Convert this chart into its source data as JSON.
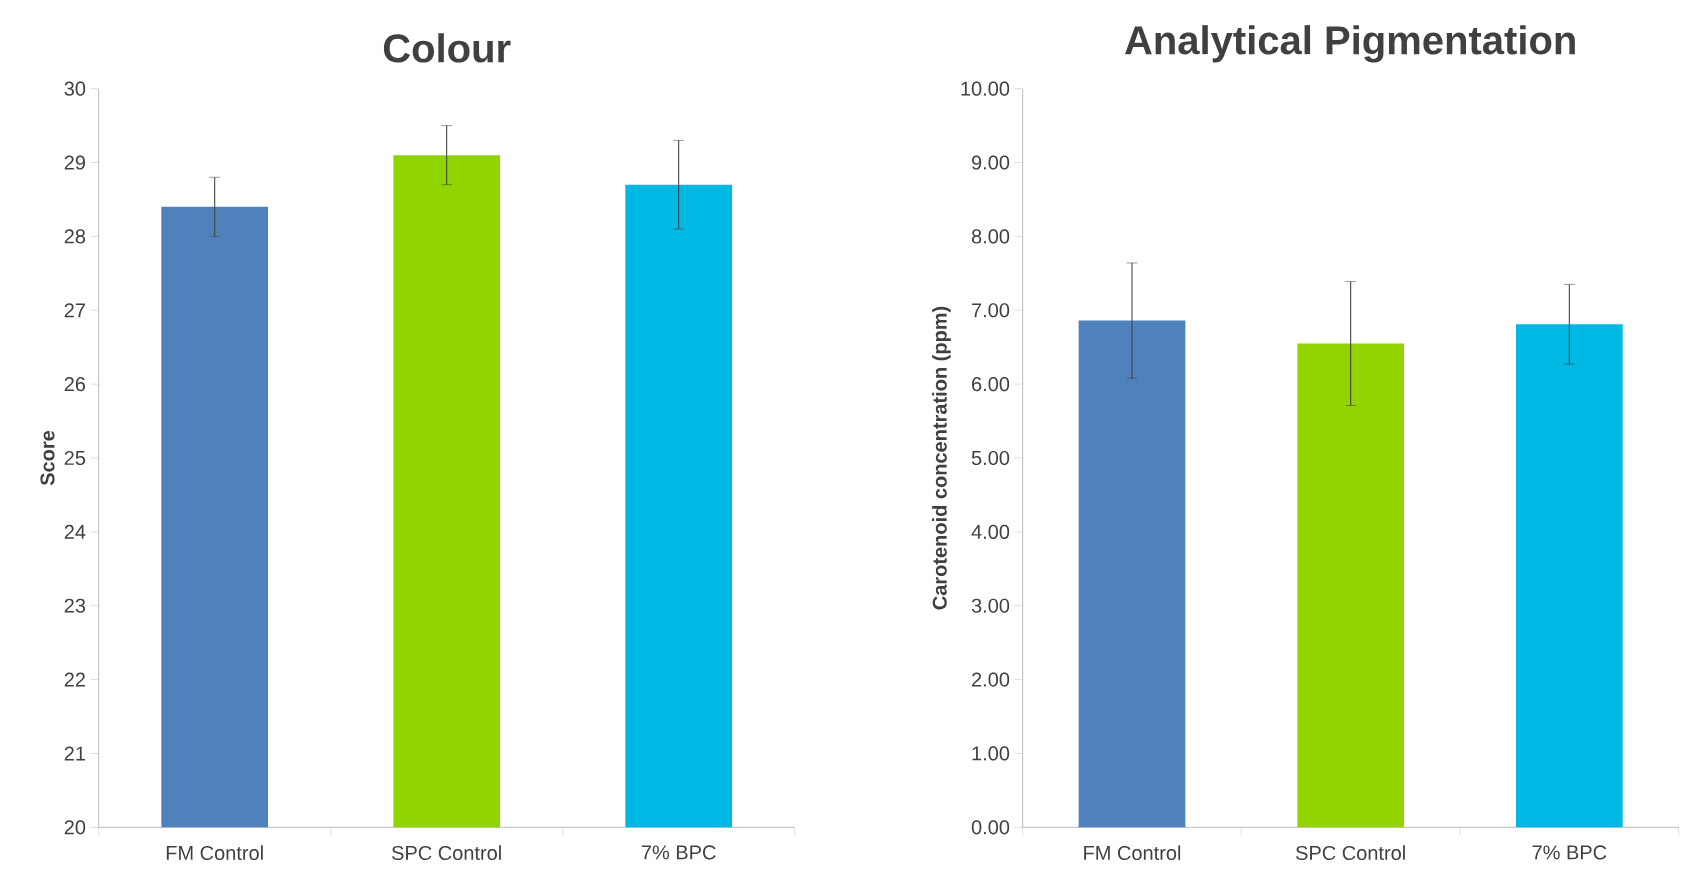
{
  "chart_data": [
    {
      "type": "bar",
      "title": "Colour",
      "ylabel": "Score",
      "categories": [
        "FM Control",
        "SPC Control",
        "7% BPC"
      ],
      "values": [
        28.4,
        29.1,
        28.7
      ],
      "errors": [
        0.4,
        0.4,
        0.6
      ],
      "colors": [
        "#4f81bd",
        "#92d400",
        "#00b8e4"
      ],
      "ylim": [
        20,
        30
      ],
      "yticks": [
        20,
        21,
        22,
        23,
        24,
        25,
        26,
        27,
        28,
        29,
        30
      ],
      "grid": false
    },
    {
      "type": "bar",
      "title": "Analytical Pigmentation",
      "ylabel": "Carotenoid concentration (ppm)",
      "categories": [
        "FM Control",
        "SPC Control",
        "7% BPC"
      ],
      "values": [
        6.86,
        6.55,
        6.81
      ],
      "errors": [
        0.78,
        0.84,
        0.54
      ],
      "colors": [
        "#4f81bd",
        "#92d400",
        "#00b8e4"
      ],
      "ylim": [
        0,
        10
      ],
      "yticks": [
        {
          "value": 0,
          "label": "0.00"
        },
        {
          "value": 1,
          "label": "1.00"
        },
        {
          "value": 2,
          "label": "2.00"
        },
        {
          "value": 3,
          "label": "3.00"
        },
        {
          "value": 4,
          "label": "4.00"
        },
        {
          "value": 5,
          "label": "5.00"
        },
        {
          "value": 6,
          "label": "6.00"
        },
        {
          "value": 7,
          "label": "7.00"
        },
        {
          "value": 8,
          "label": "8.00"
        },
        {
          "value": 9,
          "label": "9.00"
        },
        {
          "value": 10,
          "label": "10.00"
        }
      ],
      "grid": false
    }
  ]
}
